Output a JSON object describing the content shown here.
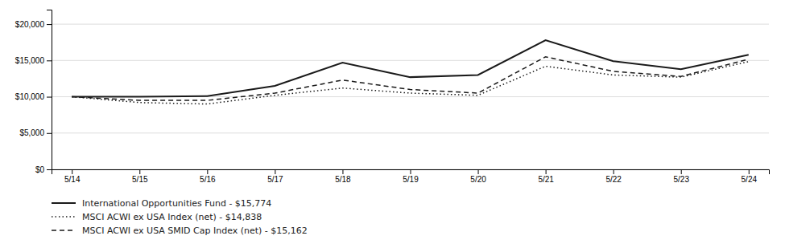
{
  "chart_data": {
    "type": "line",
    "categories": [
      "5/14",
      "5/15",
      "5/16",
      "5/17",
      "5/18",
      "5/19",
      "5/20",
      "5/21",
      "5/22",
      "5/23",
      "5/24"
    ],
    "series": [
      {
        "name": "International Opportunities Fund - $15,774",
        "color": "#1a1a1a",
        "line_style": "solid",
        "values": [
          10000,
          10000,
          10100,
          11500,
          14700,
          12700,
          13000,
          17800,
          14900,
          13800,
          15774
        ]
      },
      {
        "name": "MSCI ACWI ex USA Index (net) - $14,838",
        "color": "#1a1a1a",
        "line_style": "dotted",
        "values": [
          10000,
          9200,
          9000,
          10200,
          11200,
          10500,
          10200,
          14200,
          13000,
          12700,
          14838
        ]
      },
      {
        "name": "MSCI ACWI ex USA SMID Cap Index (net) - $15,162",
        "color": "#1a1a1a",
        "line_style": "dashed",
        "values": [
          10000,
          9500,
          9500,
          10500,
          12300,
          11000,
          10500,
          15500,
          13500,
          12800,
          15162
        ]
      }
    ],
    "ylim": [
      0,
      22000
    ],
    "yticks": [
      {
        "value": 0,
        "label": "$0"
      },
      {
        "value": 5000,
        "label": "$5,000"
      },
      {
        "value": 10000,
        "label": "$10,000"
      },
      {
        "value": 15000,
        "label": "$15,000"
      },
      {
        "value": 20000,
        "label": "$20,000"
      }
    ],
    "grid": true,
    "legend": "bottom"
  }
}
